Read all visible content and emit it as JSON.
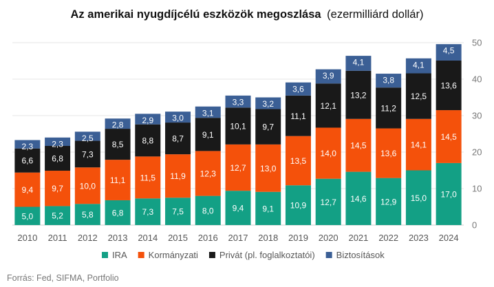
{
  "chart_data": {
    "type": "bar",
    "stacked": true,
    "title": "Az amerikai nyugdíjcélú eszközök megoszlása",
    "subtitle": "(ezermilliárd dollár)",
    "categories": [
      "2010",
      "2011",
      "2012",
      "2013",
      "2014",
      "2015",
      "2016",
      "2017",
      "2018",
      "2019",
      "2020",
      "2021",
      "2022",
      "2023",
      "2024"
    ],
    "series": [
      {
        "name": "IRA",
        "color": "#13a085",
        "values": [
          5.0,
          5.2,
          5.8,
          6.8,
          7.3,
          7.5,
          8.0,
          9.4,
          9.1,
          10.9,
          12.7,
          14.6,
          12.9,
          15.0,
          17.0
        ],
        "labels": [
          "5,0",
          "5,2",
          "5,8",
          "6,8",
          "7,3",
          "7,5",
          "8,0",
          "9,4",
          "9,1",
          "10,9",
          "12,7",
          "14,6",
          "12,9",
          "15,0",
          "17,0"
        ]
      },
      {
        "name": "Kormányzati",
        "color": "#f4510b",
        "values": [
          9.4,
          9.7,
          10.0,
          11.1,
          11.5,
          11.9,
          12.3,
          12.7,
          13.0,
          13.5,
          14.0,
          14.5,
          13.6,
          14.1,
          14.5
        ],
        "labels": [
          "9,4",
          "9,7",
          "10,0",
          "11,1",
          "11,5",
          "11,9",
          "12,3",
          "12,7",
          "13,0",
          "13,5",
          "14,0",
          "14,5",
          "13,6",
          "14,1",
          "14,5"
        ]
      },
      {
        "name": "Privát (pl. foglalkoztatói)",
        "color": "#191919",
        "values": [
          6.6,
          6.8,
          7.3,
          8.5,
          8.8,
          8.7,
          9.1,
          10.1,
          9.7,
          11.1,
          12.1,
          13.2,
          11.2,
          12.5,
          13.6
        ],
        "labels": [
          "6,6",
          "6,8",
          "7,3",
          "8,5",
          "8,8",
          "8,7",
          "9,1",
          "10,1",
          "9,7",
          "11,1",
          "12,1",
          "13,2",
          "11,2",
          "12,5",
          "13,6"
        ]
      },
      {
        "name": "Biztosítások",
        "color": "#3b5f95",
        "values": [
          2.3,
          2.3,
          2.5,
          2.8,
          2.9,
          3.0,
          3.1,
          3.3,
          3.2,
          3.6,
          3.9,
          4.1,
          3.8,
          4.1,
          4.5
        ],
        "labels": [
          "2,3",
          "2,3",
          "2,5",
          "2,8",
          "2,9",
          "3,0",
          "3,1",
          "3,3",
          "3,2",
          "3,6",
          "3,9",
          "4,1",
          "3,8",
          "4,1",
          "4,5"
        ]
      }
    ],
    "ylim": [
      0,
      50
    ],
    "yticks": [
      0,
      10,
      20,
      30,
      40,
      50
    ],
    "ytick_labels": [
      "0",
      "10",
      "20",
      "30",
      "40",
      "50"
    ],
    "y_axis_side": "right",
    "grid": true,
    "legend_position": "bottom",
    "source": "Forrás: Fed, SIFMA, Portfolio"
  }
}
